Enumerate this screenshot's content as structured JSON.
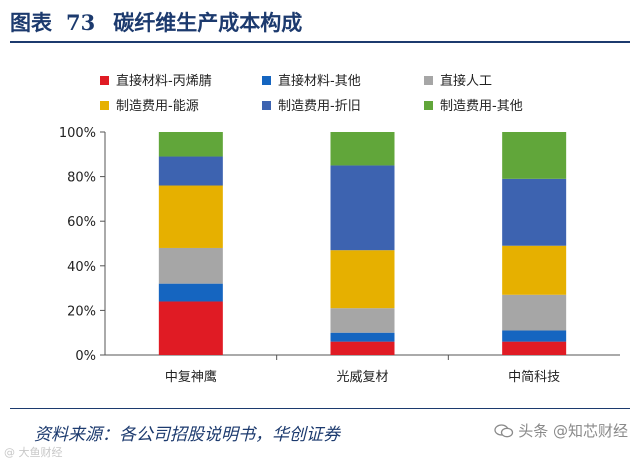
{
  "header": {
    "figure_label": "图表",
    "figure_number": "73",
    "title": "碳纤维生产成本构成"
  },
  "chart_data": {
    "type": "bar",
    "stacked": true,
    "title": "碳纤维生产成本构成",
    "categories": [
      "中复神鹰",
      "光威复材",
      "中简科技"
    ],
    "series": [
      {
        "name": "直接材料-丙烯腈",
        "color": "#e01b24",
        "values": [
          24,
          6,
          6
        ]
      },
      {
        "name": "直接材料-其他",
        "color": "#1565c0",
        "values": [
          8,
          4,
          5
        ]
      },
      {
        "name": "直接人工",
        "color": "#a6a6a6",
        "values": [
          16,
          11,
          16
        ]
      },
      {
        "name": "制造费用-能源",
        "color": "#e6b000",
        "values": [
          28,
          26,
          22
        ]
      },
      {
        "name": "制造费用-折旧",
        "color": "#3d63b0",
        "values": [
          13,
          38,
          30
        ]
      },
      {
        "name": "制造费用-其他",
        "color": "#61a63a",
        "values": [
          11,
          15,
          21
        ]
      }
    ],
    "yticks": [
      "0%",
      "20%",
      "40%",
      "60%",
      "80%",
      "100%"
    ],
    "ylim": [
      0,
      100
    ],
    "legend_position": "top",
    "grid": false
  },
  "source": "资料来源：各公司招股说明书，华创证券",
  "watermarks": {
    "left": "@ 大鱼财经",
    "right": "头条 @知芯财经",
    "right_icon": "wechat-icon"
  }
}
